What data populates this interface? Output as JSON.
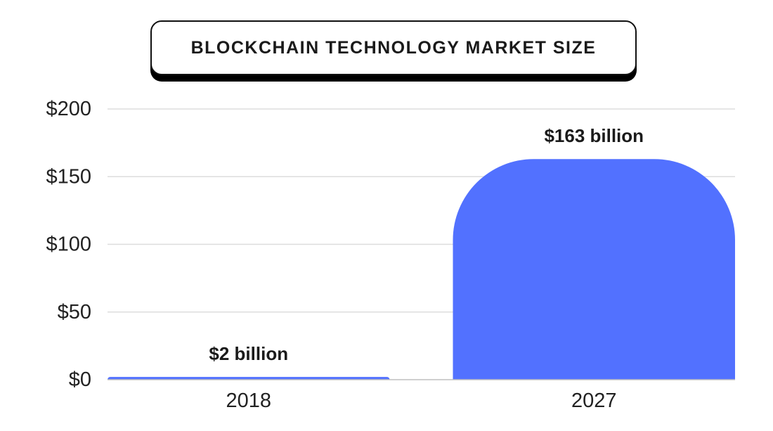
{
  "chart_data": {
    "type": "bar",
    "title": "BLOCKCHAIN TECHNOLOGY MARKET SIZE",
    "xlabel": "",
    "ylabel": "",
    "categories": [
      "2018",
      "2027"
    ],
    "values": [
      2,
      163
    ],
    "data_labels": [
      "$2 billion",
      "$163 billion"
    ],
    "y_ticks": [
      0,
      50,
      100,
      150,
      200
    ],
    "y_tick_labels": [
      "$0",
      "$50",
      "$100",
      "$150",
      "$200"
    ],
    "ylim": [
      0,
      200
    ],
    "grid": true,
    "legend": "none",
    "bar_color": "#5271FF",
    "grid_color": "#DDDDDD",
    "text_color": "#222222"
  }
}
